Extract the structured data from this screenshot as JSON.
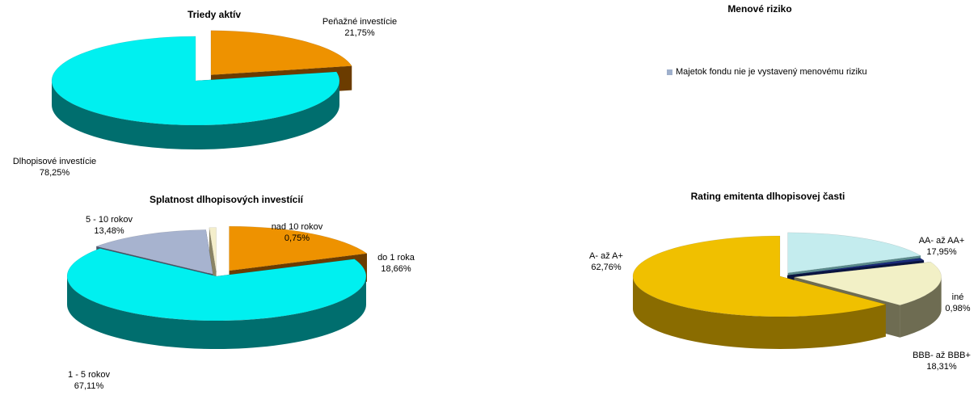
{
  "chart_data": [
    {
      "type": "pie",
      "title": "Triedy aktív",
      "slices": [
        {
          "label": "Peňažné investície",
          "value": 21.75,
          "value_text": "21,75%",
          "color": "#ee9200",
          "side_color": "#6b3c00"
        },
        {
          "label": "Dlhopisové investície",
          "value": 78.25,
          "value_text": "78,25%",
          "color": "#00f0f0",
          "side_color": "#006e6e"
        }
      ]
    },
    {
      "type": "pie",
      "title": "Menové riziko",
      "legend": [
        {
          "label": "Majetok fondu nie je vystavený menovému riziku",
          "color": "#9fb0cc"
        }
      ],
      "slices": []
    },
    {
      "type": "pie",
      "title": "Splatnost dlhopisových investícií",
      "slices": [
        {
          "label": "do 1 roka",
          "value": 18.66,
          "value_text": "18,66%",
          "color": "#ee9200",
          "side_color": "#6b3c00"
        },
        {
          "label": "1 - 5 rokov",
          "value": 67.11,
          "value_text": "67,11%",
          "color": "#00f0f0",
          "side_color": "#006e6e"
        },
        {
          "label": "5 - 10 rokov",
          "value": 13.48,
          "value_text": "13,48%",
          "color": "#a7b3cf",
          "side_color": "#4a5466"
        },
        {
          "label": "nad 10 rokov",
          "value": 0.75,
          "value_text": "0,75%",
          "color": "#f4eecb",
          "side_color": "#8a8466"
        }
      ]
    },
    {
      "type": "pie",
      "title": "Rating emitenta dlhopisovej časti",
      "slices": [
        {
          "label": "AA- až AA+",
          "value": 17.95,
          "value_text": "17,95%",
          "color": "#c4ecee",
          "side_color": "#5a8a8c"
        },
        {
          "label": "iné",
          "value": 0.98,
          "value_text": "0,98%",
          "color": "#1a2a7a",
          "side_color": "#0a1440"
        },
        {
          "label": "BBB- až BBB+",
          "value": 18.31,
          "value_text": "18,31%",
          "color": "#f2f0c6",
          "side_color": "#6e6c52"
        },
        {
          "label": "A-  až A+",
          "value": 62.76,
          "value_text": "62,76%",
          "color": "#f0c000",
          "side_color": "#8a6c00"
        }
      ]
    }
  ]
}
